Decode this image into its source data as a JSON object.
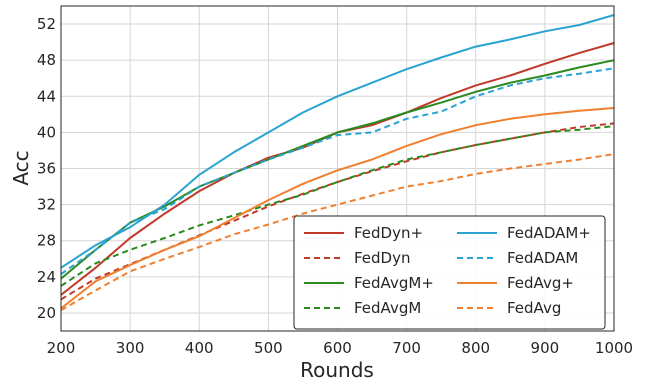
{
  "chart_data": {
    "type": "line",
    "title": "",
    "xlabel": "Rounds",
    "ylabel": "Acc",
    "xlim": [
      200,
      1000
    ],
    "ylim": [
      18,
      54
    ],
    "x_ticks": [
      200,
      300,
      400,
      500,
      600,
      700,
      800,
      900,
      1000
    ],
    "y_ticks": [
      20,
      24,
      28,
      32,
      36,
      40,
      44,
      48,
      52
    ],
    "grid": true,
    "legend_position": "lower-right",
    "legend_columns": 2,
    "x": [
      200,
      250,
      300,
      350,
      400,
      450,
      500,
      550,
      600,
      650,
      700,
      750,
      800,
      850,
      900,
      950,
      1000
    ],
    "series": [
      {
        "name": "FedDyn+",
        "color": "#c0392b",
        "dash": "solid",
        "values": [
          22.0,
          25.0,
          28.3,
          31.0,
          33.5,
          35.5,
          37.2,
          38.3,
          40.0,
          40.8,
          42.2,
          43.8,
          45.2,
          46.3,
          47.6,
          48.8,
          49.9
        ]
      },
      {
        "name": "FedDyn",
        "color": "#c0392b",
        "dash": "dashed",
        "values": [
          21.5,
          23.8,
          25.4,
          27.0,
          28.6,
          30.2,
          31.8,
          33.2,
          34.5,
          35.7,
          36.8,
          37.8,
          38.6,
          39.3,
          40.0,
          40.6,
          41.0
        ]
      },
      {
        "name": "FedAvgM+",
        "color": "#2a8a1e",
        "dash": "solid",
        "values": [
          23.8,
          27.0,
          30.0,
          31.8,
          34.0,
          35.5,
          37.0,
          38.5,
          40.0,
          41.0,
          42.2,
          43.3,
          44.5,
          45.5,
          46.3,
          47.2,
          48.0
        ]
      },
      {
        "name": "FedAvgM",
        "color": "#2a8a1e",
        "dash": "dashed",
        "values": [
          23.0,
          25.5,
          27.0,
          28.3,
          29.7,
          30.8,
          32.0,
          33.1,
          34.5,
          35.8,
          37.0,
          37.8,
          38.6,
          39.3,
          40.0,
          40.3,
          40.7
        ]
      },
      {
        "name": "FedADAM+",
        "color": "#29a3d1",
        "dash": "solid",
        "values": [
          25.0,
          27.5,
          29.5,
          32.0,
          35.3,
          37.8,
          40.0,
          42.2,
          44.0,
          45.5,
          47.0,
          48.3,
          49.5,
          50.3,
          51.2,
          51.9,
          53.0
        ]
      },
      {
        "name": "FedADAM",
        "color": "#29a3d1",
        "dash": "dashed",
        "values": [
          24.3,
          27.0,
          30.0,
          31.5,
          34.0,
          35.5,
          37.0,
          38.3,
          39.7,
          40.0,
          41.5,
          42.3,
          44.0,
          45.2,
          46.0,
          46.5,
          47.1
        ]
      },
      {
        "name": "FedAvg+",
        "color": "#f08030",
        "dash": "solid",
        "values": [
          20.5,
          23.5,
          25.3,
          27.0,
          28.5,
          30.5,
          32.5,
          34.3,
          35.8,
          37.0,
          38.5,
          39.8,
          40.8,
          41.5,
          42.0,
          42.4,
          42.7
        ]
      },
      {
        "name": "FedAvg",
        "color": "#f08030",
        "dash": "dashed",
        "values": [
          20.3,
          22.5,
          24.6,
          26.0,
          27.3,
          28.7,
          29.8,
          31.0,
          32.0,
          33.0,
          34.0,
          34.6,
          35.4,
          36.0,
          36.5,
          37.0,
          37.6
        ]
      }
    ],
    "legend_order": [
      "FedDyn+",
      "FedDyn",
      "FedAvgM+",
      "FedAvgM",
      "FedADAM+",
      "FedADAM",
      "FedAvg+",
      "FedAvg"
    ]
  }
}
